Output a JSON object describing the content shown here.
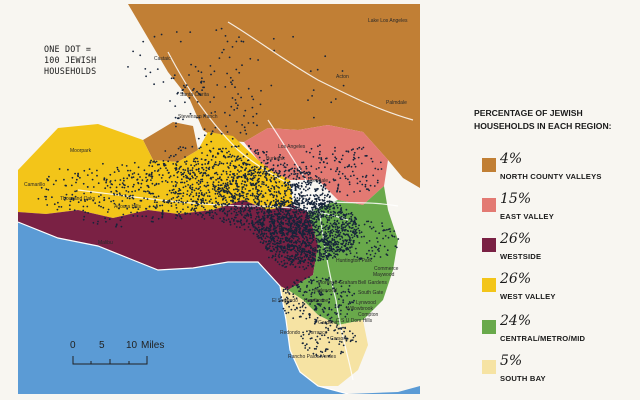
{
  "note": {
    "lines": [
      "ONE DOT =",
      "100 JEWISH",
      "HOUSEHOLDS"
    ]
  },
  "legend": {
    "title": "PERCENTAGE OF JEWISH HOUSEHOLDS IN EACH REGION:",
    "items": [
      {
        "percent": "4%",
        "label": "NORTH COUNTY VALLEYS",
        "color": "#c17f35"
      },
      {
        "percent": "15%",
        "label": "EAST VALLEY",
        "color": "#e37a73"
      },
      {
        "percent": "26%",
        "label": "WESTSIDE",
        "color": "#7a2144"
      },
      {
        "percent": "26%",
        "label": "WEST VALLEY",
        "color": "#f3c519"
      },
      {
        "percent": "24%",
        "label": "CENTRAL/METRO/MID",
        "color": "#69a94b"
      },
      {
        "percent": "5%",
        "label": "SOUTH BAY",
        "color": "#f6e3a3"
      }
    ]
  },
  "scale": {
    "ticks": [
      "0",
      "5",
      "10"
    ],
    "unit": "Miles"
  },
  "colors": {
    "ocean": "#5b9bd5",
    "land": "#f8f6f1",
    "dots": "#16243a"
  },
  "places": [
    "Lake Los Angeles",
    "Castaic",
    "Acton",
    "Palmdale",
    "Santa Clarita",
    "Stevenson Ranch",
    "Moorpark",
    "Camarillo",
    "Thousand Oaks",
    "Agoura Hills",
    "Malibu",
    "Los Angeles",
    "Glendale",
    "Burbank",
    "Huntington Park",
    "South Gate",
    "Florence-Graham",
    "Bell Gardens",
    "Lynwood",
    "Compton",
    "Carson",
    "El Segundo",
    "Hawthorne",
    "Redondo",
    "Torrance",
    "Commerce",
    "Maywood",
    "Inglewood",
    "Gardena",
    "Willowbrook",
    "Rancho Palos Verdes",
    "C S U Dom Hills"
  ]
}
